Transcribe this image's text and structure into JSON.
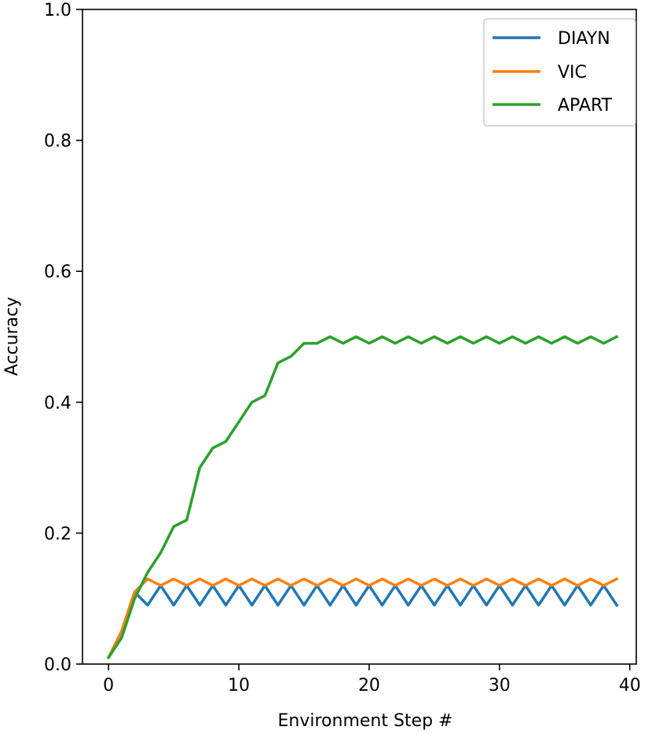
{
  "chart_data": {
    "type": "line",
    "title": "",
    "xlabel": "Environment Step #",
    "ylabel": "Accuracy",
    "xlim": [
      -2,
      40.5
    ],
    "ylim": [
      0,
      1.0
    ],
    "xticks": [
      0,
      10,
      20,
      30,
      40
    ],
    "xtick_labels": [
      "0",
      "10",
      "20",
      "30",
      "40"
    ],
    "yticks": [
      0.0,
      0.2,
      0.4,
      0.6,
      0.8,
      1.0
    ],
    "ytick_labels": [
      "0.0",
      "0.2",
      "0.4",
      "0.6",
      "0.8",
      "1.0"
    ],
    "grid": false,
    "legend_position": "top-right",
    "x": [
      0,
      1,
      2,
      3,
      4,
      5,
      6,
      7,
      8,
      9,
      10,
      11,
      12,
      13,
      14,
      15,
      16,
      17,
      18,
      19,
      20,
      21,
      22,
      23,
      24,
      25,
      26,
      27,
      28,
      29,
      30,
      31,
      32,
      33,
      34,
      35,
      36,
      37,
      38,
      39
    ],
    "series": [
      {
        "name": "DIAYN",
        "color": "#1f77b4",
        "values": [
          0.01,
          0.05,
          0.11,
          0.09,
          0.12,
          0.09,
          0.12,
          0.09,
          0.12,
          0.09,
          0.12,
          0.09,
          0.12,
          0.09,
          0.12,
          0.09,
          0.12,
          0.09,
          0.12,
          0.09,
          0.12,
          0.09,
          0.12,
          0.09,
          0.12,
          0.09,
          0.12,
          0.09,
          0.12,
          0.09,
          0.12,
          0.09,
          0.12,
          0.09,
          0.12,
          0.09,
          0.12,
          0.09,
          0.12,
          0.09
        ]
      },
      {
        "name": "VIC",
        "color": "#ff7f0e",
        "values": [
          0.01,
          0.05,
          0.11,
          0.13,
          0.12,
          0.13,
          0.12,
          0.13,
          0.12,
          0.13,
          0.12,
          0.13,
          0.12,
          0.13,
          0.12,
          0.13,
          0.12,
          0.13,
          0.12,
          0.13,
          0.12,
          0.13,
          0.12,
          0.13,
          0.12,
          0.13,
          0.12,
          0.13,
          0.12,
          0.13,
          0.12,
          0.13,
          0.12,
          0.13,
          0.12,
          0.13,
          0.12,
          0.13,
          0.12,
          0.13
        ]
      },
      {
        "name": "APART",
        "color": "#2ca02c",
        "values": [
          0.01,
          0.04,
          0.1,
          0.14,
          0.17,
          0.21,
          0.22,
          0.3,
          0.33,
          0.34,
          0.37,
          0.4,
          0.41,
          0.46,
          0.47,
          0.49,
          0.49,
          0.5,
          0.49,
          0.5,
          0.49,
          0.5,
          0.49,
          0.5,
          0.49,
          0.5,
          0.49,
          0.5,
          0.49,
          0.5,
          0.49,
          0.5,
          0.49,
          0.5,
          0.49,
          0.5,
          0.49,
          0.5,
          0.49,
          0.5
        ]
      }
    ]
  }
}
